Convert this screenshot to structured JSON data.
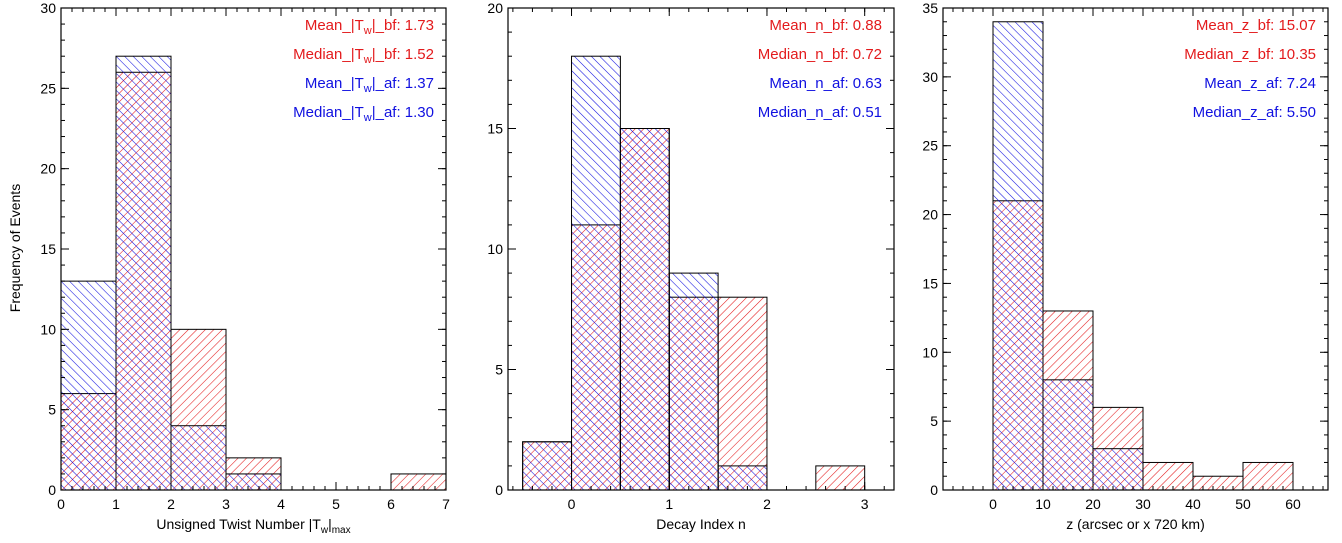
{
  "colors": {
    "before": "#e31a1c",
    "after": "#1010e0",
    "axis": "#000000",
    "background": "#ffffff"
  },
  "figure": {
    "ylabel": "Frequency of Events"
  },
  "chart_data": [
    {
      "id": "twist",
      "type": "bar",
      "xlabel_main": "Unsigned Twist Number |T",
      "xlabel_sub": "w",
      "xlabel_end": "|",
      "xlabel_subend": "max",
      "xlim": [
        0,
        7
      ],
      "ylim": [
        0,
        30
      ],
      "xticks": [
        "0",
        "1",
        "2",
        "3",
        "4",
        "5",
        "6",
        "7"
      ],
      "yticks": [
        "0",
        "5",
        "10",
        "15",
        "20",
        "25",
        "30"
      ],
      "xtick_values": [
        0,
        1,
        2,
        3,
        4,
        5,
        6,
        7
      ],
      "ytick_values": [
        0,
        5,
        10,
        15,
        20,
        25,
        30
      ],
      "bin_width": 1,
      "series": [
        {
          "name": "bf",
          "bin_starts": [
            0,
            1,
            2,
            3,
            6
          ],
          "values": [
            6,
            26,
            10,
            2,
            1
          ]
        },
        {
          "name": "af",
          "bin_starts": [
            0,
            1,
            2,
            3
          ],
          "values": [
            13,
            27,
            4,
            1
          ]
        }
      ],
      "annotations": [
        {
          "color": "before",
          "parts": [
            {
              "t": "Mean_|T"
            },
            {
              "t": "w",
              "sub": true
            },
            {
              "t": "|_bf: 1.73"
            }
          ]
        },
        {
          "color": "before",
          "parts": [
            {
              "t": "Median_|T"
            },
            {
              "t": "w",
              "sub": true
            },
            {
              "t": "|_bf: 1.52"
            }
          ]
        },
        {
          "color": "after",
          "parts": [
            {
              "t": "Mean_|T"
            },
            {
              "t": "w",
              "sub": true
            },
            {
              "t": "|_af: 1.37"
            }
          ]
        },
        {
          "color": "after",
          "parts": [
            {
              "t": "Median_|T"
            },
            {
              "t": "w",
              "sub": true
            },
            {
              "t": "|_af: 1.30"
            }
          ]
        }
      ]
    },
    {
      "id": "decay",
      "type": "bar",
      "xlabel_main": "Decay Index n",
      "xlim": [
        -0.65,
        3.3
      ],
      "ylim": [
        0,
        20
      ],
      "xticks": [
        "0",
        "1",
        "2",
        "3"
      ],
      "yticks": [
        "0",
        "5",
        "10",
        "15",
        "20"
      ],
      "xtick_values": [
        0,
        1,
        2,
        3
      ],
      "ytick_values": [
        0,
        5,
        10,
        15,
        20
      ],
      "bin_width": 0.5,
      "series": [
        {
          "name": "bf",
          "bin_starts": [
            -0.5,
            0,
            0.5,
            1,
            1.5,
            2.5
          ],
          "values": [
            2,
            11,
            15,
            8,
            8,
            1
          ]
        },
        {
          "name": "af",
          "bin_starts": [
            -0.5,
            0,
            0.5,
            1,
            1.5
          ],
          "values": [
            2,
            18,
            15,
            9,
            1
          ]
        }
      ],
      "annotations": [
        {
          "color": "before",
          "parts": [
            {
              "t": "Mean_n_bf: 0.88"
            }
          ]
        },
        {
          "color": "before",
          "parts": [
            {
              "t": "Median_n_bf: 0.72"
            }
          ]
        },
        {
          "color": "after",
          "parts": [
            {
              "t": "Mean_n_af: 0.63"
            }
          ]
        },
        {
          "color": "after",
          "parts": [
            {
              "t": "Median_n_af: 0.51"
            }
          ]
        }
      ]
    },
    {
      "id": "height",
      "type": "bar",
      "xlabel_main": "z (arcsec or x 720 km)",
      "xlim": [
        -10,
        67
      ],
      "ylim": [
        0,
        35
      ],
      "xticks": [
        "0",
        "10",
        "20",
        "30",
        "40",
        "50",
        "60"
      ],
      "yticks": [
        "0",
        "5",
        "10",
        "15",
        "20",
        "25",
        "30",
        "35"
      ],
      "xtick_values": [
        0,
        10,
        20,
        30,
        40,
        50,
        60
      ],
      "ytick_values": [
        0,
        5,
        10,
        15,
        20,
        25,
        30,
        35
      ],
      "bin_width": 10,
      "series": [
        {
          "name": "bf",
          "bin_starts": [
            0,
            10,
            20,
            30,
            40,
            50
          ],
          "values": [
            21,
            13,
            6,
            2,
            1,
            2
          ]
        },
        {
          "name": "af",
          "bin_starts": [
            0,
            10,
            20
          ],
          "values": [
            34,
            8,
            3
          ]
        }
      ],
      "annotations": [
        {
          "color": "before",
          "parts": [
            {
              "t": "Mean_z_bf: 15.07"
            }
          ]
        },
        {
          "color": "before",
          "parts": [
            {
              "t": "Median_z_bf: 10.35"
            }
          ]
        },
        {
          "color": "after",
          "parts": [
            {
              "t": "Mean_z_af: 7.24"
            }
          ]
        },
        {
          "color": "after",
          "parts": [
            {
              "t": "Median_z_af: 5.50"
            }
          ]
        }
      ]
    }
  ]
}
